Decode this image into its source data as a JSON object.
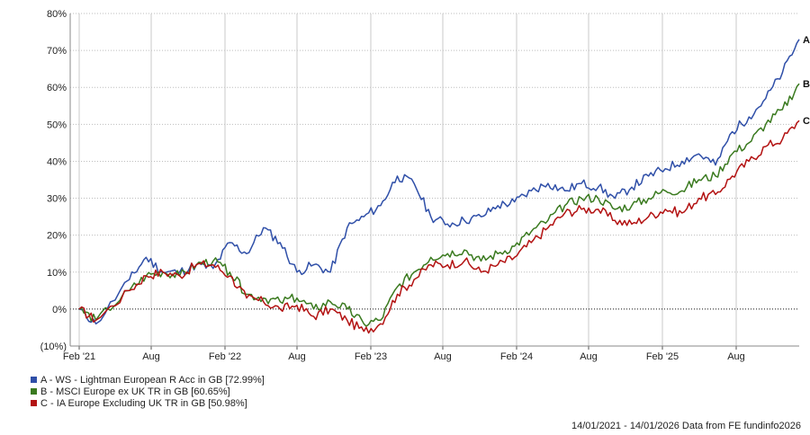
{
  "chart_data": {
    "type": "line",
    "ylabel": "",
    "xlabel": "",
    "ylim": [
      -10,
      80
    ],
    "y_ticks": [
      "80%",
      "70%",
      "60%",
      "50%",
      "40%",
      "30%",
      "20%",
      "10%",
      "0%",
      "(10%)"
    ],
    "x_ticks": [
      "Feb '21",
      "Aug",
      "Feb '22",
      "Aug",
      "Feb '23",
      "Aug",
      "Feb '24",
      "Aug",
      "Feb '25",
      "Aug"
    ],
    "grid": true,
    "legend_position": "bottom-left",
    "series": [
      {
        "name": "A - WS - Lightman European R Acc in GB [72.99%]",
        "end_label": "A",
        "color": "#2f4fa8",
        "points": [
          [
            0,
            0
          ],
          [
            1,
            -4
          ],
          [
            3,
            8
          ],
          [
            4,
            14
          ],
          [
            5,
            10
          ],
          [
            6,
            10
          ],
          [
            7,
            12
          ],
          [
            8,
            11
          ],
          [
            9,
            18
          ],
          [
            10,
            15
          ],
          [
            11,
            22
          ],
          [
            12,
            18
          ],
          [
            13,
            10
          ],
          [
            14,
            12
          ],
          [
            15,
            10
          ],
          [
            16,
            22
          ],
          [
            17,
            25
          ],
          [
            18,
            28
          ],
          [
            19,
            36
          ],
          [
            20,
            34
          ],
          [
            21,
            25
          ],
          [
            22,
            23
          ],
          [
            23,
            24
          ],
          [
            24,
            25
          ],
          [
            25,
            28
          ],
          [
            26,
            29
          ],
          [
            27,
            32
          ],
          [
            28,
            34
          ],
          [
            29,
            32
          ],
          [
            30,
            34
          ],
          [
            31,
            33
          ],
          [
            32,
            30
          ],
          [
            33,
            33
          ],
          [
            34,
            36
          ],
          [
            35,
            38
          ],
          [
            36,
            40
          ],
          [
            37,
            42
          ],
          [
            38,
            39
          ],
          [
            39,
            48
          ],
          [
            40,
            52
          ],
          [
            41,
            57
          ],
          [
            42,
            64
          ],
          [
            43,
            73
          ]
        ]
      },
      {
        "name": "B - MSCI Europe ex UK TR in GB [60.65%]",
        "end_label": "B",
        "color": "#3a7a1f",
        "points": [
          [
            0,
            0
          ],
          [
            1,
            -3
          ],
          [
            3,
            5
          ],
          [
            4,
            9
          ],
          [
            5,
            10
          ],
          [
            6,
            9
          ],
          [
            7,
            12
          ],
          [
            8,
            13
          ],
          [
            9,
            10
          ],
          [
            10,
            4
          ],
          [
            11,
            3
          ],
          [
            12,
            2
          ],
          [
            13,
            3
          ],
          [
            14,
            0
          ],
          [
            15,
            2
          ],
          [
            16,
            0
          ],
          [
            17,
            -4
          ],
          [
            18,
            -3
          ],
          [
            19,
            6
          ],
          [
            20,
            10
          ],
          [
            21,
            14
          ],
          [
            22,
            15
          ],
          [
            23,
            16
          ],
          [
            24,
            13
          ],
          [
            25,
            15
          ],
          [
            26,
            17
          ],
          [
            27,
            21
          ],
          [
            28,
            24
          ],
          [
            29,
            28
          ],
          [
            30,
            30
          ],
          [
            31,
            30
          ],
          [
            32,
            27
          ],
          [
            33,
            28
          ],
          [
            34,
            30
          ],
          [
            35,
            32
          ],
          [
            36,
            32
          ],
          [
            37,
            35
          ],
          [
            38,
            36
          ],
          [
            39,
            42
          ],
          [
            40,
            45
          ],
          [
            41,
            50
          ],
          [
            42,
            54
          ],
          [
            43,
            61
          ]
        ]
      },
      {
        "name": "C - IA Europe Excluding UK TR in GB [50.98%]",
        "end_label": "C",
        "color": "#b31212",
        "points": [
          [
            0,
            0
          ],
          [
            1,
            -3
          ],
          [
            3,
            5
          ],
          [
            4,
            9
          ],
          [
            5,
            10
          ],
          [
            6,
            9
          ],
          [
            7,
            12
          ],
          [
            8,
            12
          ],
          [
            9,
            9
          ],
          [
            10,
            3
          ],
          [
            11,
            2
          ],
          [
            12,
            0
          ],
          [
            13,
            1
          ],
          [
            14,
            -2
          ],
          [
            15,
            0
          ],
          [
            16,
            -3
          ],
          [
            17,
            -6
          ],
          [
            18,
            -4
          ],
          [
            19,
            4
          ],
          [
            20,
            8
          ],
          [
            21,
            12
          ],
          [
            22,
            12
          ],
          [
            23,
            13
          ],
          [
            24,
            10
          ],
          [
            25,
            12
          ],
          [
            26,
            14
          ],
          [
            27,
            18
          ],
          [
            28,
            22
          ],
          [
            29,
            26
          ],
          [
            30,
            27
          ],
          [
            31,
            27
          ],
          [
            32,
            24
          ],
          [
            33,
            23
          ],
          [
            34,
            25
          ],
          [
            35,
            27
          ],
          [
            36,
            26
          ],
          [
            37,
            30
          ],
          [
            38,
            31
          ],
          [
            39,
            36
          ],
          [
            40,
            40
          ],
          [
            41,
            44
          ],
          [
            42,
            46
          ],
          [
            43,
            51
          ]
        ]
      }
    ]
  },
  "footer": "14/01/2021 - 14/01/2026 Data from FE fundinfo2026"
}
